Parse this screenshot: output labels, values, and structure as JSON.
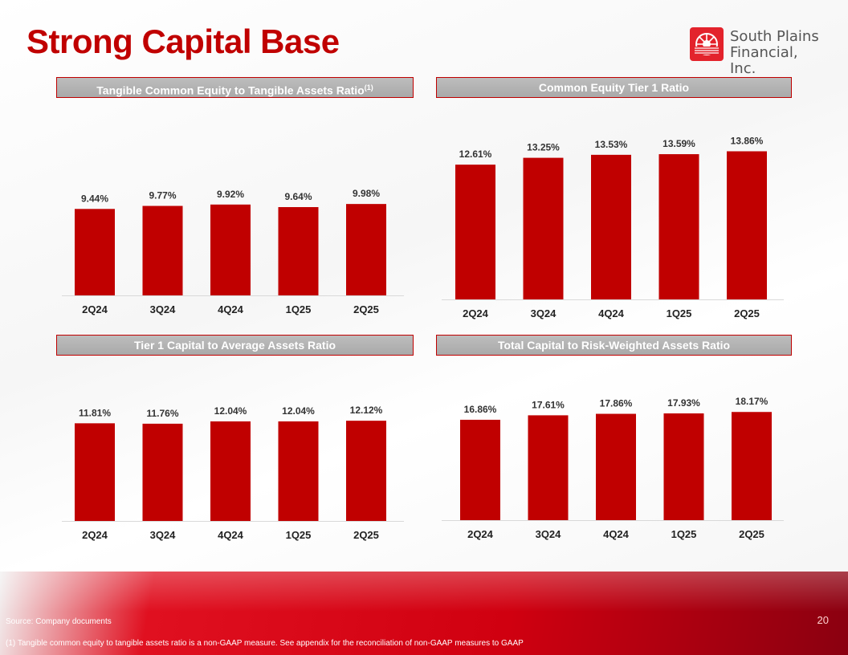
{
  "page": {
    "title": "Strong Capital Base",
    "logo_line1": "South Plains",
    "logo_line2": "Financial, Inc.",
    "source": "Source: Company documents",
    "footnote": "(1)    Tangible common equity to tangible assets ratio is a non-GAAP measure. See appendix for the reconciliation of non-GAAP measures to GAAP",
    "page_number": "20",
    "bar_color": "#c00000"
  },
  "chart_data": [
    {
      "type": "bar",
      "title": "Tangible Common Equity to Tangible Assets Ratio",
      "title_sup": "(1)",
      "categories": [
        "2Q24",
        "3Q24",
        "4Q24",
        "1Q25",
        "2Q25"
      ],
      "values": [
        9.44,
        9.77,
        9.92,
        9.64,
        9.98
      ],
      "labels": [
        "9.44%",
        "9.77%",
        "9.92%",
        "9.64%",
        "9.98%"
      ],
      "ylim": [
        0,
        14.9
      ]
    },
    {
      "type": "bar",
      "title": "Common Equity Tier 1 Ratio",
      "categories": [
        "2Q24",
        "3Q24",
        "4Q24",
        "1Q25",
        "2Q25"
      ],
      "values": [
        12.61,
        13.25,
        13.53,
        13.59,
        13.86
      ],
      "labels": [
        "12.61%",
        "13.25%",
        "13.53%",
        "13.59%",
        "13.86%"
      ],
      "ylim": [
        0,
        16.9
      ]
    },
    {
      "type": "bar",
      "title": "Tier 1 Capital to Average Assets Ratio",
      "categories": [
        "2Q24",
        "3Q24",
        "4Q24",
        "1Q25",
        "2Q25"
      ],
      "values": [
        11.81,
        11.76,
        12.04,
        12.04,
        12.12
      ],
      "labels": [
        "11.81%",
        "11.76%",
        "12.04%",
        "12.04%",
        "12.12%"
      ],
      "ylim": [
        0,
        16.6
      ]
    },
    {
      "type": "bar",
      "title": "Total Capital to Risk-Weighted Assets Ratio",
      "categories": [
        "2Q24",
        "3Q24",
        "4Q24",
        "1Q25",
        "2Q25"
      ],
      "values": [
        16.86,
        17.61,
        17.86,
        17.93,
        18.17
      ],
      "labels": [
        "16.86%",
        "17.61%",
        "17.86%",
        "17.93%",
        "18.17%"
      ],
      "ylim": [
        0,
        24.0
      ]
    }
  ]
}
